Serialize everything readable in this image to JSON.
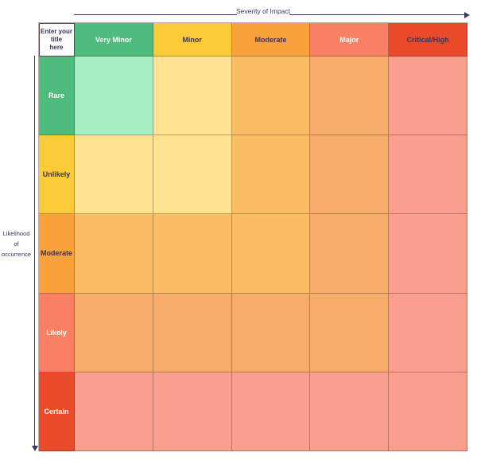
{
  "diagram": {
    "type": "risk-assessment-matrix",
    "x_axis_label": "Severity of Impact",
    "y_axis_label_lines": [
      "Likelihood of",
      "occurrence"
    ],
    "title_placeholder_lines": [
      "Enter your",
      "title",
      "here"
    ]
  },
  "columns": [
    {
      "label": "Very Minor",
      "bg": "#4FBC7D",
      "text_color": "#FFFFFF"
    },
    {
      "label": "Minor",
      "bg": "#FBCA39",
      "text_color": "#3C3356"
    },
    {
      "label": "Moderate",
      "bg": "#F9A23C",
      "text_color": "#3C3356"
    },
    {
      "label": "Major",
      "bg": "#F98064",
      "text_color": "#FFFFFF"
    },
    {
      "label": "Critical/High",
      "bg": "#E94A29",
      "text_color": "#3C3356"
    }
  ],
  "rows": [
    {
      "label": "Rare",
      "bg": "#4FBC7D",
      "text_color": "#FFFFFF",
      "cells": [
        "#A9EDC4",
        "#FDE390",
        "#FBBD63",
        "#F8AC6B",
        "#FA9E8D"
      ]
    },
    {
      "label": "Unlikely",
      "bg": "#FBCA39",
      "text_color": "#3C3356",
      "cells": [
        "#FDE390",
        "#FDE390",
        "#FBBD63",
        "#F8AC6B",
        "#FA9E8D"
      ]
    },
    {
      "label": "Moderate",
      "bg": "#F9A23C",
      "text_color": "#3C3356",
      "cells": [
        "#FBBD63",
        "#FBBD63",
        "#FBBD63",
        "#F8AC6B",
        "#FA9E8D"
      ]
    },
    {
      "label": "Likely",
      "bg": "#F98064",
      "text_color": "#FFFFFF",
      "cells": [
        "#F8AC6B",
        "#F8AC6B",
        "#F8AC6B",
        "#F8AC6B",
        "#FA9E8D"
      ]
    },
    {
      "label": "Certain",
      "bg": "#E94A29",
      "text_color": "#FFFFFF",
      "cells": [
        "#FA9E8D",
        "#FA9E8D",
        "#FA9E8D",
        "#FA9E8D",
        "#FA9E8D"
      ]
    }
  ],
  "colors": {
    "axis": "#3E3566",
    "grid_line": "rgba(74,43,28,0.38)",
    "title_cell_bg": "#FDFDFD",
    "title_cell_border": "#4A4A4A",
    "dark_text": "#3C3356",
    "light_text": "#FFFFFF",
    "page_bg": "#FFFFFF"
  }
}
